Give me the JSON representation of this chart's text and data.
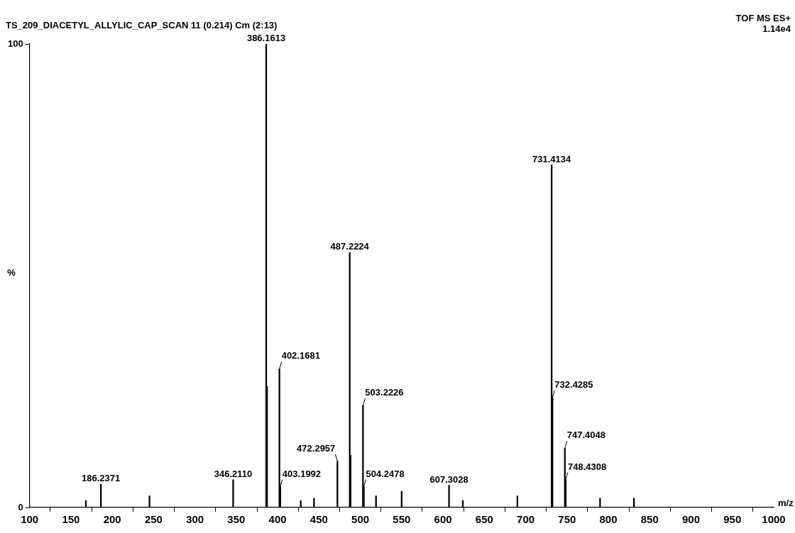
{
  "chart_data": {
    "type": "bar",
    "title": "TS_209_DIACETYL_ALLYLIC_CAP_SCAN 11 (0.214) Cm (2:13)",
    "annotations": [
      "TOF MS ES+",
      "1.14e4",
      {
        "text": "186.2371",
        "x": 186.2371,
        "y": 5.0
      },
      {
        "text": "346.2110",
        "x": 346.211,
        "y": 6.0
      },
      {
        "text": "386.1613",
        "x": 386.1613,
        "y": 100
      },
      {
        "text": "402.1681",
        "x": 402.1681,
        "y": 29.9
      },
      {
        "text": "403.1992",
        "x": 403.1992,
        "y": 4.5
      },
      {
        "text": "472.2957",
        "x": 472.2957,
        "y": 10.0
      },
      {
        "text": "487.2224",
        "x": 487.2224,
        "y": 55.0
      },
      {
        "text": "503.2226",
        "x": 503.2226,
        "y": 22.0
      },
      {
        "text": "504.2478",
        "x": 504.2478,
        "y": 4.5
      },
      {
        "text": "607.3028",
        "x": 607.3028,
        "y": 4.8
      },
      {
        "text": "731.4134",
        "x": 731.4134,
        "y": 73.9
      },
      {
        "text": "732.4285",
        "x": 732.4285,
        "y": 23.7
      },
      {
        "text": "747.4048",
        "x": 747.4048,
        "y": 12.8
      },
      {
        "text": "748.4308",
        "x": 748.4308,
        "y": 6.0
      }
    ],
    "xlabel": "m/z",
    "ylabel": "%",
    "x": [
      168.1,
      186.2371,
      245.0,
      346.211,
      386.1613,
      387.17,
      402.1681,
      403.1992,
      428.0,
      444.0,
      472.2957,
      487.2224,
      488.23,
      503.2226,
      504.2478,
      519.0,
      550.0,
      607.3028,
      624.0,
      690.0,
      731.4134,
      732.4285,
      747.4048,
      748.4308,
      790.0,
      831.0
    ],
    "series": [
      {
        "color": "#000000",
        "values": [
          1.5,
          5.0,
          2.5,
          6.0,
          100,
          26.1,
          29.9,
          4.5,
          1.5,
          2.0,
          10.0,
          55.0,
          11.3,
          22.0,
          4.5,
          2.5,
          3.5,
          4.8,
          1.5,
          2.5,
          73.9,
          23.7,
          12.8,
          6.0,
          2.0,
          2.0
        ]
      }
    ],
    "xlim": [
      100,
      1000
    ],
    "xticks": [
      100,
      150,
      200,
      250,
      300,
      350,
      400,
      450,
      500,
      550,
      600,
      650,
      700,
      750,
      800,
      850,
      900,
      950,
      1000
    ],
    "ylim": [
      0,
      100
    ],
    "yticks": [
      0,
      100
    ],
    "grid": false,
    "legend": false
  }
}
